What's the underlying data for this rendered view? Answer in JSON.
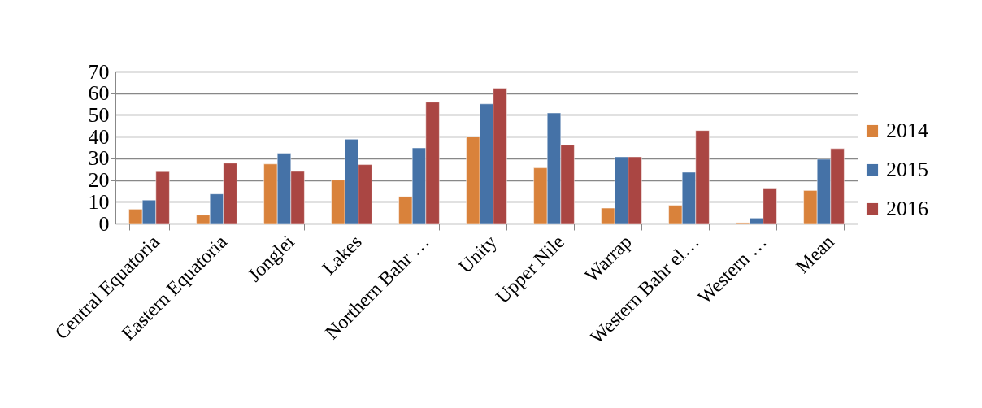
{
  "chart_data": {
    "type": "bar",
    "categories": [
      "Central Equatoria",
      "Eastern Equatoria",
      "Jonglei",
      "Lakes",
      "Northern Bahr …",
      "Unity",
      "Upper Nile",
      "Warrap",
      "Western Bahr el…",
      "Western …",
      "Mean"
    ],
    "series": [
      {
        "name": "2014",
        "color": "#d9823b",
        "values": [
          6.6,
          3.9,
          27.4,
          20,
          12.4,
          40.1,
          25.6,
          7.1,
          8.4,
          0.4,
          15.2
        ]
      },
      {
        "name": "2015",
        "color": "#4572a7",
        "values": [
          10.8,
          13.6,
          32.4,
          38.8,
          34.8,
          55.1,
          50.9,
          30.7,
          23.6,
          2.5,
          29.6
        ]
      },
      {
        "name": "2016",
        "color": "#aa4643",
        "values": [
          23.9,
          27.8,
          24,
          27.1,
          55.9,
          62.3,
          36.1,
          30.7,
          42.8,
          16.3,
          34.5
        ]
      }
    ],
    "ylim": [
      0,
      70
    ],
    "yticks": [
      0,
      10,
      20,
      30,
      40,
      50,
      60,
      70
    ],
    "grid": "y",
    "legend": "right"
  }
}
